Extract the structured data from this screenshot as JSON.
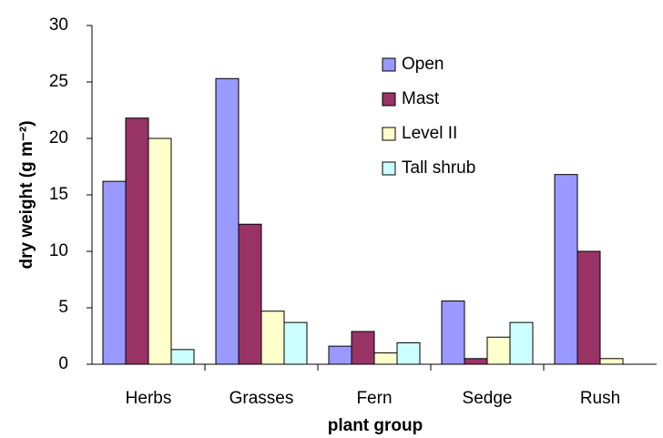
{
  "chart_data": {
    "type": "bar",
    "xlabel": "plant group",
    "ylabel": "dry weight (g m⁻²)",
    "categories": [
      "Herbs",
      "Grasses",
      "Fern",
      "Sedge",
      "Rush"
    ],
    "series": [
      {
        "name": "Open",
        "color": "#9999ff",
        "values": [
          16.2,
          25.3,
          1.6,
          5.6,
          16.8
        ]
      },
      {
        "name": "Mast",
        "color": "#993366",
        "values": [
          21.8,
          12.4,
          2.9,
          0.5,
          10.0
        ]
      },
      {
        "name": "Level II",
        "color": "#ffffcc",
        "values": [
          20.0,
          4.7,
          1.0,
          2.4,
          0.5
        ]
      },
      {
        "name": "Tall shrub",
        "color": "#ccffff",
        "values": [
          1.3,
          3.7,
          1.9,
          3.7,
          0
        ]
      }
    ],
    "ylim": [
      0,
      30
    ],
    "yticks": [
      0,
      5,
      10,
      15,
      20,
      25,
      30
    ],
    "grid": false,
    "legend": "upper right"
  }
}
